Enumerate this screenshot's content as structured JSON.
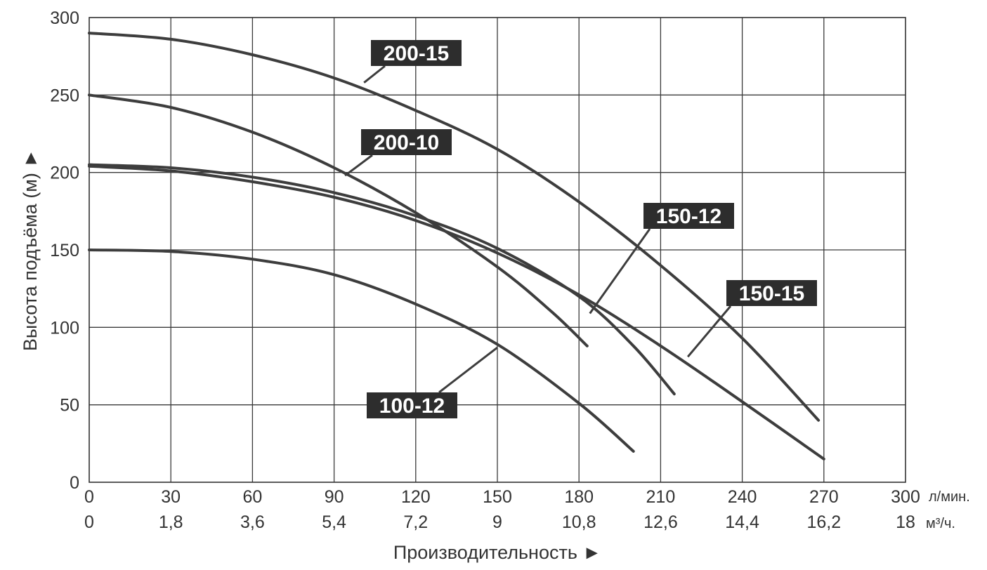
{
  "chart_data": {
    "type": "line",
    "xlabel": "Производительность ►",
    "ylabel": "Высота подъёма (м) ►",
    "x_unit_primary": "л/мин.",
    "x_unit_secondary": "м³/ч.",
    "xlim": [
      0,
      300
    ],
    "ylim": [
      0,
      300
    ],
    "x_ticks": [
      "0",
      "30",
      "60",
      "90",
      "120",
      "150",
      "180",
      "210",
      "240",
      "270",
      "300"
    ],
    "x_ticks_secondary": [
      "0",
      "1,8",
      "3,6",
      "5,4",
      "7,2",
      "9",
      "10,8",
      "12,6",
      "14,4",
      "16,2",
      "18"
    ],
    "y_ticks": [
      "0",
      "50",
      "100",
      "150",
      "200",
      "250",
      "300"
    ],
    "grid": true,
    "series": [
      {
        "name": "200-15",
        "x": [
          0,
          30,
          60,
          90,
          120,
          150,
          180,
          210,
          240,
          268
        ],
        "y": [
          290,
          286,
          276,
          261,
          240,
          215,
          181,
          140,
          93,
          40
        ]
      },
      {
        "name": "200-10",
        "x": [
          0,
          30,
          60,
          90,
          120,
          150,
          170,
          183
        ],
        "y": [
          250,
          242,
          226,
          203,
          174,
          139,
          110,
          88
        ]
      },
      {
        "name": "150-12",
        "x": [
          0,
          30,
          60,
          90,
          120,
          150,
          180,
          200,
          215
        ],
        "y": [
          205,
          203,
          197,
          187,
          172,
          151,
          120,
          88,
          57
        ]
      },
      {
        "name": "150-15",
        "x": [
          0,
          30,
          60,
          90,
          120,
          150,
          180,
          210,
          240,
          270
        ],
        "y": [
          204,
          201,
          194,
          184,
          169,
          148,
          121,
          88,
          52,
          15
        ]
      },
      {
        "name": "100-12",
        "x": [
          0,
          30,
          60,
          90,
          120,
          150,
          180,
          200
        ],
        "y": [
          150,
          149,
          144,
          134,
          115,
          89,
          51,
          20
        ]
      }
    ],
    "annotations": [
      {
        "text": "200-15",
        "series": "200-15"
      },
      {
        "text": "200-10",
        "series": "200-10"
      },
      {
        "text": "150-12",
        "series": "150-12"
      },
      {
        "text": "150-15",
        "series": "150-15"
      },
      {
        "text": "100-12",
        "series": "100-12"
      }
    ],
    "colors": {
      "curve": "#3d3d3d",
      "grid": "#3a3a3a",
      "label_bg": "#2d2d2d",
      "label_text": "#ffffff"
    }
  }
}
